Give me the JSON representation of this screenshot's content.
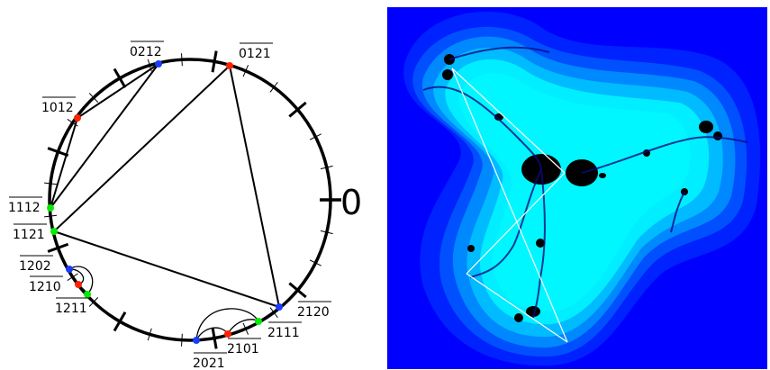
{
  "circle_diagram": {
    "zero_label": "0",
    "labels": [
      {
        "id": "l0212",
        "text": "0212"
      },
      {
        "id": "l0121",
        "text": "0121"
      },
      {
        "id": "l1012",
        "text": "1012"
      },
      {
        "id": "l1112",
        "text": "1112"
      },
      {
        "id": "l1121",
        "text": "1121"
      },
      {
        "id": "l1202",
        "text": "1202"
      },
      {
        "id": "l1210",
        "text": "1210"
      },
      {
        "id": "l1211",
        "text": "1211"
      },
      {
        "id": "l2120",
        "text": "2120"
      },
      {
        "id": "l2111",
        "text": "2111"
      },
      {
        "id": "l2101",
        "text": "2101"
      },
      {
        "id": "l2021",
        "text": "2021"
      }
    ],
    "point_colors": {
      "red": "#ff2200",
      "green": "#00ee00",
      "blue": "#1a3cff"
    }
  },
  "fractal_panel": {
    "colors": {
      "outer": "#0000ff",
      "band1": "#0022ff",
      "band2": "#0050ff",
      "band3": "#0088ff",
      "band4": "#00bbff",
      "band5": "#00eeff",
      "interior": "#000000",
      "rays": "#ffffff"
    }
  }
}
